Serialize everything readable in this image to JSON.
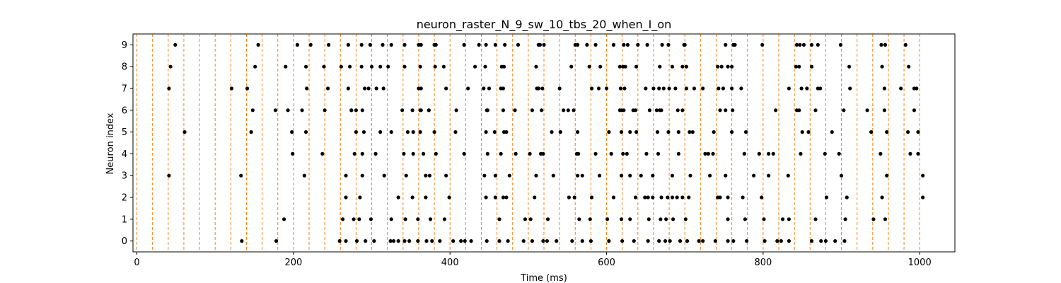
{
  "chart_data": {
    "type": "scatter",
    "title": "neuron_raster_N_9_sw_10_tbs_20_when_I_on",
    "xlabel": "Time (ms)",
    "ylabel": "Neuron index",
    "xlim": [
      -5,
      1045
    ],
    "ylim": [
      -0.5,
      9.5
    ],
    "xticks": [
      0,
      200,
      400,
      600,
      800,
      1000
    ],
    "yticks": [
      0,
      1,
      2,
      3,
      4,
      5,
      6,
      7,
      8,
      9
    ],
    "grid": false,
    "marker_color": "#000000",
    "vline_color": "#ff7f0e",
    "vlines": [
      0,
      20,
      40,
      60,
      80,
      100,
      120,
      140,
      160,
      180,
      200,
      220,
      240,
      260,
      280,
      300,
      320,
      340,
      360,
      380,
      400,
      420,
      440,
      460,
      480,
      500,
      520,
      540,
      560,
      580,
      600,
      620,
      640,
      660,
      680,
      700,
      720,
      740,
      760,
      780,
      800,
      820,
      840,
      860,
      880,
      900,
      920,
      940,
      960,
      980,
      1000
    ],
    "spikes": [
      {
        "neuron": 9,
        "times": [
          49,
          155,
          205,
          222,
          245,
          270,
          287,
          298,
          314,
          325,
          342,
          360,
          363,
          380,
          382,
          418,
          437,
          446,
          458,
          470,
          487,
          513,
          515,
          520,
          560,
          563,
          575,
          586,
          609,
          622,
          627,
          640,
          652,
          671,
          679,
          699,
          700,
          752,
          762,
          764,
          799,
          843,
          847,
          852,
          862,
          870,
          899,
          951,
          956,
          982
        ]
      },
      {
        "neuron": 8,
        "times": [
          43,
          151,
          190,
          216,
          239,
          261,
          272,
          287,
          300,
          311,
          321,
          342,
          362,
          381,
          392,
          432,
          445,
          466,
          469,
          510,
          555,
          578,
          592,
          617,
          621,
          624,
          638,
          668,
          684,
          697,
          702,
          742,
          747,
          755,
          760,
          842,
          846,
          862,
          910,
          952,
          986
        ]
      },
      {
        "neuron": 7,
        "times": [
          41,
          121,
          141,
          217,
          244,
          270,
          291,
          296,
          306,
          315,
          360,
          363,
          395,
          423,
          443,
          450,
          465,
          468,
          511,
          513,
          513,
          518,
          540,
          581,
          590,
          600,
          618,
          623,
          650,
          660,
          667,
          673,
          680,
          688,
          702,
          712,
          723,
          743,
          749,
          760,
          772,
          833,
          849,
          856,
          870,
          873,
          911,
          955,
          976,
          993,
          996
        ]
      },
      {
        "neuron": 6,
        "times": [
          148,
          177,
          193,
          211,
          240,
          274,
          274,
          280,
          288,
          339,
          352,
          363,
          362,
          373,
          373,
          408,
          447,
          448,
          468,
          483,
          505,
          517,
          545,
          551,
          558,
          617,
          619,
          622,
          634,
          637,
          655,
          664,
          668,
          670,
          691,
          697,
          745,
          752,
          761,
          816,
          843,
          846,
          867,
          903,
          933,
          955,
          993
        ]
      },
      {
        "neuron": 5,
        "times": [
          61,
          146,
          198,
          216,
          280,
          290,
          311,
          325,
          346,
          353,
          362,
          380,
          407,
          446,
          457,
          469,
          472,
          530,
          541,
          563,
          603,
          619,
          630,
          638,
          665,
          679,
          692,
          706,
          710,
          737,
          760,
          778,
          850,
          858,
          888,
          938,
          958,
          985,
          998
        ]
      },
      {
        "neuron": 4,
        "times": [
          199,
          237,
          278,
          288,
          305,
          341,
          353,
          366,
          382,
          418,
          448,
          465,
          484,
          502,
          516,
          519,
          562,
          564,
          586,
          606,
          621,
          626,
          651,
          666,
          692,
          726,
          730,
          736,
          776,
          795,
          807,
          813,
          848,
          879,
          897,
          950,
          988,
          998
        ]
      },
      {
        "neuron": 3,
        "times": [
          41,
          133,
          214,
          267,
          288,
          316,
          344,
          369,
          374,
          395,
          444,
          458,
          476,
          510,
          532,
          563,
          569,
          591,
          619,
          630,
          644,
          659,
          684,
          707,
          732,
          752,
          788,
          807,
          832,
          900,
          958,
          1004
        ]
      },
      {
        "neuron": 2,
        "times": [
          267,
          285,
          334,
          352,
          369,
          399,
          446,
          458,
          468,
          472,
          508,
          552,
          559,
          581,
          609,
          637,
          649,
          653,
          659,
          670,
          678,
          684,
          690,
          697,
          705,
          742,
          745,
          755,
          774,
          798,
          881,
          907,
          952,
          1004
        ]
      },
      {
        "neuron": 1,
        "times": [
          188,
          263,
          277,
          284,
          299,
          325,
          343,
          359,
          375,
          393,
          463,
          496,
          503,
          525,
          565,
          579,
          601,
          619,
          630,
          654,
          669,
          676,
          685,
          701,
          755,
          777,
          801,
          825,
          833,
          867,
          905,
          941,
          956
        ]
      },
      {
        "neuron": 0,
        "times": [
          134,
          178,
          259,
          267,
          281,
          292,
          303,
          324,
          328,
          334,
          342,
          348,
          359,
          370,
          377,
          387,
          404,
          414,
          419,
          427,
          447,
          463,
          474,
          494,
          505,
          519,
          524,
          536,
          556,
          569,
          580,
          603,
          620,
          635,
          653,
          667,
          675,
          681,
          694,
          703,
          718,
          723,
          739,
          755,
          762,
          779,
          802,
          818,
          823,
          833,
          862,
          874,
          880,
          892,
          904
        ]
      }
    ]
  }
}
